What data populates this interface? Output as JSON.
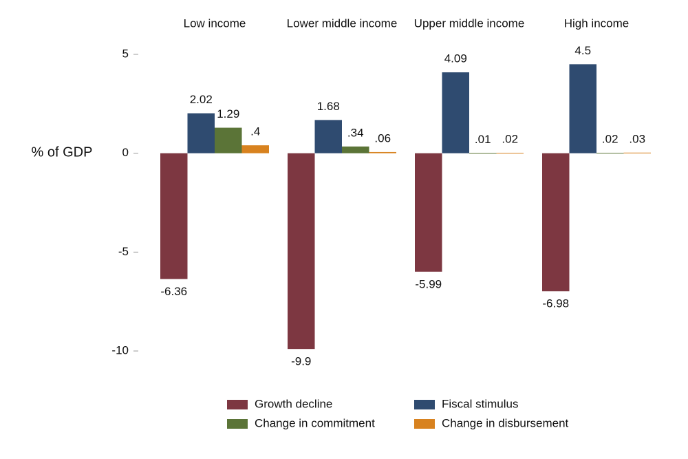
{
  "chart_data": {
    "type": "bar",
    "y_label": "% of GDP",
    "categories": [
      "Low income",
      "Lower middle income",
      "Upper middle income",
      "High income"
    ],
    "series": [
      {
        "name": "Growth decline",
        "color": "#7d3741",
        "values": [
          -6.36,
          -9.9,
          -5.99,
          -6.98
        ],
        "value_labels": [
          "-6.36",
          "-9.9",
          "-5.99",
          "-6.98"
        ]
      },
      {
        "name": "Fiscal stimulus",
        "color": "#2f4b70",
        "values": [
          2.02,
          1.68,
          4.09,
          4.5
        ],
        "value_labels": [
          "2.02",
          "1.68",
          "4.09",
          "4.5"
        ]
      },
      {
        "name": "Change in commitment",
        "color": "#5b7437",
        "values": [
          1.29,
          0.34,
          0.01,
          0.02
        ],
        "value_labels": [
          "1.29",
          ".34",
          ".01",
          ".02"
        ]
      },
      {
        "name": "Change in disbursement",
        "color": "#d8821f",
        "values": [
          0.4,
          0.06,
          0.02,
          0.03
        ],
        "value_labels": [
          ".4",
          ".06",
          ".02",
          ".03"
        ]
      }
    ],
    "ylim": [
      -10.5,
      5.5
    ],
    "yticks": [
      5,
      0,
      -5,
      -10
    ],
    "grid": false,
    "legend": "bottom"
  }
}
